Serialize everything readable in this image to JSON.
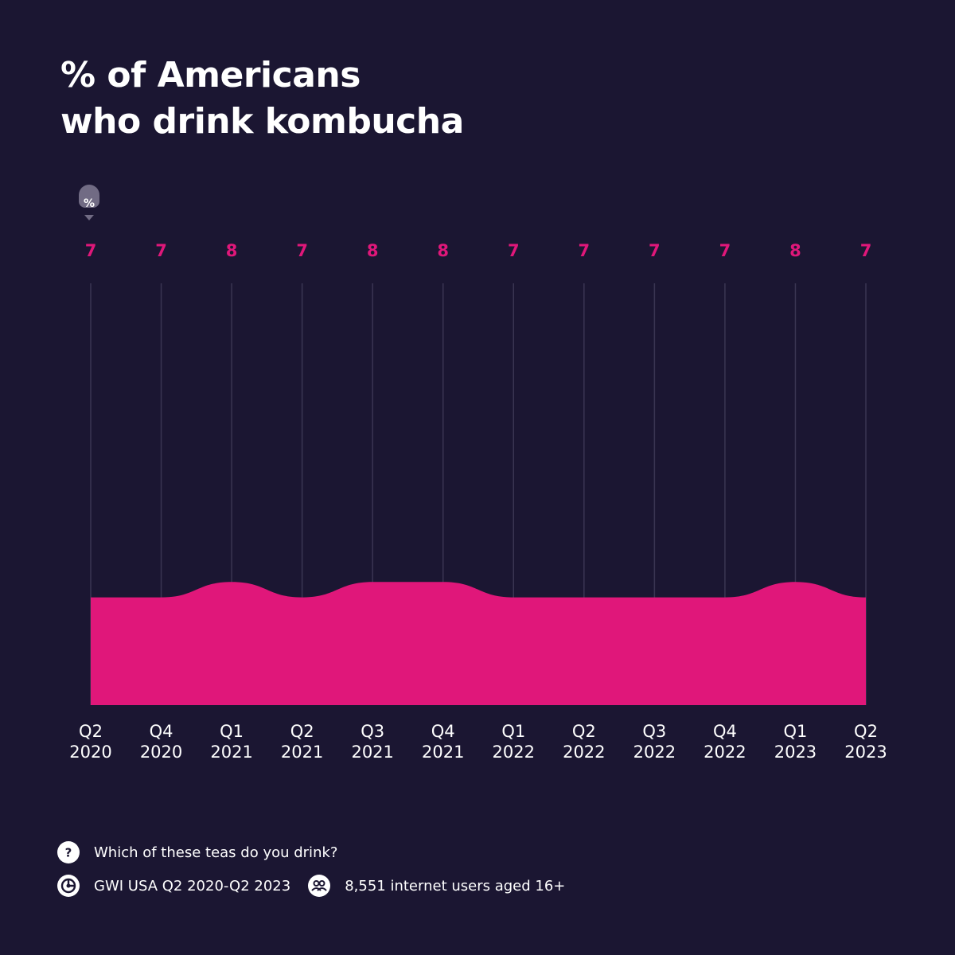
{
  "title": {
    "line1": "% of Americans",
    "line2": "who drink kombucha"
  },
  "unit_badge": "%",
  "colors": {
    "background": "#1b1632",
    "area": "#e0177a",
    "gridline": "#3a3552"
  },
  "chart_data": {
    "type": "area",
    "title": "% of Americans who drink kombucha",
    "ylabel": "%",
    "ylim": [
      0,
      29
    ],
    "categories": [
      [
        "Q2",
        "2020"
      ],
      [
        "Q4",
        "2020"
      ],
      [
        "Q1",
        "2021"
      ],
      [
        "Q2",
        "2021"
      ],
      [
        "Q3",
        "2021"
      ],
      [
        "Q4",
        "2021"
      ],
      [
        "Q1",
        "2022"
      ],
      [
        "Q2",
        "2022"
      ],
      [
        "Q3",
        "2022"
      ],
      [
        "Q4",
        "2022"
      ],
      [
        "Q1",
        "2023"
      ],
      [
        "Q2",
        "2023"
      ]
    ],
    "values": [
      7,
      7,
      8,
      7,
      8,
      8,
      7,
      7,
      7,
      7,
      8,
      7
    ],
    "grid": true
  },
  "footer": {
    "question_icon": "question-icon",
    "question": "Which of these teas do you drink?",
    "source_icon": "gwi-logo-icon",
    "source": "GWI USA Q2 2020-Q2 2023",
    "sample_icon": "users-icon",
    "sample": "8,551 internet users aged 16+"
  }
}
